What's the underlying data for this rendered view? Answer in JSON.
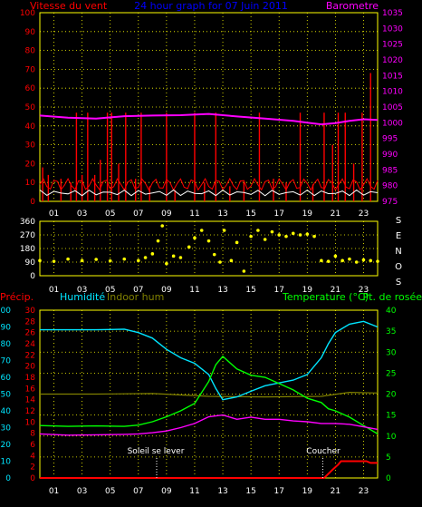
{
  "header": {
    "left": "Vitesse du vent",
    "center": "24 hour graph for  07 Juin 2011",
    "right": "Barometre"
  },
  "x_ticks": [
    "01",
    "03",
    "05",
    "07",
    "09",
    "11",
    "13",
    "15",
    "17",
    "19",
    "21",
    "23"
  ],
  "colors": {
    "grid": "#ffff00",
    "wind": "#ff0000",
    "gust": "#ffffff",
    "pressure": "#ff00ff",
    "direction": "#ffff00",
    "humidity": "#00e5ff",
    "indoor": "#808000",
    "temperature": "#00ff00",
    "dewpoint": "#ff00ff",
    "rain": "#ff0000",
    "sun": "#ffffff",
    "header_left": "#ff0000",
    "header_center": "#0000ff",
    "header_right": "#ff00ff"
  },
  "chart_data": [
    {
      "type": "line",
      "name": "wind",
      "y_left_ticks": [
        "0",
        "10",
        "20",
        "30",
        "40",
        "50",
        "60",
        "70",
        "80",
        "90",
        "100"
      ],
      "y_right_ticks": [
        "975",
        "980",
        "985",
        "990",
        "995",
        "1000",
        "1005",
        "1010",
        "1015",
        "1020",
        "1025",
        "1030",
        "1035"
      ],
      "ylim_left": [
        0,
        100
      ],
      "ylim_right": [
        975,
        1035
      ],
      "xlim": [
        0,
        24
      ],
      "pressure": {
        "x": [
          0,
          2,
          4,
          6,
          8,
          10,
          12,
          14,
          16,
          18,
          19,
          20,
          21,
          22,
          23,
          24
        ],
        "y": [
          1002.3,
          1001.6,
          1001.3,
          1002.1,
          1002.3,
          1002.4,
          1002.8,
          1002.0,
          1001.3,
          1000.6,
          1000.0,
          999.5,
          999.9,
          1000.6,
          1001.1,
          1000.9
        ]
      },
      "wind_spikes": [
        {
          "x": 0.2,
          "v": 18
        },
        {
          "x": 0.6,
          "v": 14
        },
        {
          "x": 1.5,
          "v": 12
        },
        {
          "x": 2.2,
          "v": 10
        },
        {
          "x": 2.6,
          "v": 47
        },
        {
          "x": 3.0,
          "v": 14
        },
        {
          "x": 3.4,
          "v": 47
        },
        {
          "x": 3.9,
          "v": 14
        },
        {
          "x": 4.3,
          "v": 22
        },
        {
          "x": 4.8,
          "v": 47
        },
        {
          "x": 5.1,
          "v": 47
        },
        {
          "x": 5.6,
          "v": 20
        },
        {
          "x": 6.1,
          "v": 47
        },
        {
          "x": 6.8,
          "v": 12
        },
        {
          "x": 7.2,
          "v": 47
        },
        {
          "x": 7.8,
          "v": 8
        },
        {
          "x": 9.0,
          "v": 47
        },
        {
          "x": 9.6,
          "v": 6
        },
        {
          "x": 11.0,
          "v": 47
        },
        {
          "x": 11.7,
          "v": 10
        },
        {
          "x": 12.5,
          "v": 47
        },
        {
          "x": 13.5,
          "v": 8
        },
        {
          "x": 14.5,
          "v": 10
        },
        {
          "x": 15.6,
          "v": 47
        },
        {
          "x": 16.6,
          "v": 12
        },
        {
          "x": 17.5,
          "v": 10
        },
        {
          "x": 18.5,
          "v": 47
        },
        {
          "x": 19.4,
          "v": 9
        },
        {
          "x": 20.2,
          "v": 47
        },
        {
          "x": 20.8,
          "v": 30
        },
        {
          "x": 21.2,
          "v": 47
        },
        {
          "x": 21.7,
          "v": 47
        },
        {
          "x": 22.3,
          "v": 20
        },
        {
          "x": 22.9,
          "v": 47
        },
        {
          "x": 23.5,
          "v": 68
        }
      ],
      "wind_base": 6,
      "gust_base": 3
    },
    {
      "type": "scatter",
      "name": "direction",
      "y_ticks": [
        "0",
        "90",
        "180",
        "270",
        "360"
      ],
      "side_letters": [
        "S",
        "E",
        "N",
        "O",
        "S"
      ],
      "ylim": [
        0,
        360
      ],
      "xlim": [
        0,
        24
      ],
      "points": [
        {
          "x": 0.0,
          "y": 100
        },
        {
          "x": 1.0,
          "y": 95
        },
        {
          "x": 2.0,
          "y": 110
        },
        {
          "x": 3.0,
          "y": 100
        },
        {
          "x": 4.0,
          "y": 108
        },
        {
          "x": 5.0,
          "y": 98
        },
        {
          "x": 6.0,
          "y": 110
        },
        {
          "x": 7.0,
          "y": 100
        },
        {
          "x": 7.5,
          "y": 120
        },
        {
          "x": 8.0,
          "y": 145
        },
        {
          "x": 8.4,
          "y": 230
        },
        {
          "x": 8.7,
          "y": 330
        },
        {
          "x": 9.0,
          "y": 80
        },
        {
          "x": 9.5,
          "y": 130
        },
        {
          "x": 10.0,
          "y": 120
        },
        {
          "x": 10.6,
          "y": 190
        },
        {
          "x": 11.0,
          "y": 250
        },
        {
          "x": 11.5,
          "y": 300
        },
        {
          "x": 12.0,
          "y": 230
        },
        {
          "x": 12.4,
          "y": 140
        },
        {
          "x": 12.8,
          "y": 90
        },
        {
          "x": 13.1,
          "y": 300
        },
        {
          "x": 13.6,
          "y": 100
        },
        {
          "x": 14.0,
          "y": 220
        },
        {
          "x": 14.5,
          "y": 30
        },
        {
          "x": 15.0,
          "y": 260
        },
        {
          "x": 15.5,
          "y": 300
        },
        {
          "x": 16.0,
          "y": 240
        },
        {
          "x": 16.5,
          "y": 290
        },
        {
          "x": 17.0,
          "y": 270
        },
        {
          "x": 17.5,
          "y": 260
        },
        {
          "x": 18.0,
          "y": 280
        },
        {
          "x": 18.5,
          "y": 270
        },
        {
          "x": 19.0,
          "y": 275
        },
        {
          "x": 19.5,
          "y": 260
        },
        {
          "x": 20.0,
          "y": 100
        },
        {
          "x": 20.5,
          "y": 95
        },
        {
          "x": 21.0,
          "y": 130
        },
        {
          "x": 21.5,
          "y": 100
        },
        {
          "x": 22.0,
          "y": 110
        },
        {
          "x": 22.5,
          "y": 90
        },
        {
          "x": 23.0,
          "y": 105
        },
        {
          "x": 23.5,
          "y": 100
        },
        {
          "x": 24.0,
          "y": 95
        }
      ]
    },
    {
      "type": "line",
      "name": "multi",
      "labels": {
        "precip": "Précip.",
        "humidity": "Humidité",
        "indoor": "Indoor hum",
        "temp": "Temperature (°C)",
        "dew": "Pt. de rosée"
      },
      "axis_precip_ticks": [
        "0",
        "10",
        "20",
        "30",
        "40",
        "50",
        "60",
        "70",
        "80",
        "90",
        "100"
      ],
      "axis_hum_ticks": [
        "0",
        "2",
        "4",
        "6",
        "8",
        "10",
        "12",
        "14",
        "16",
        "18",
        "20",
        "22",
        "24",
        "26",
        "28",
        "30"
      ],
      "axis_temp_ticks": [
        "0",
        "5",
        "10",
        "15",
        "20",
        "25",
        "30",
        "35",
        "40"
      ],
      "xlim": [
        0,
        24
      ],
      "ylim_temp": [
        0,
        40
      ],
      "ylim_hum": [
        0,
        30
      ],
      "ylim_precip": [
        0,
        100
      ],
      "humidity": {
        "x": [
          0,
          2,
          4,
          6,
          7,
          8,
          9,
          10,
          11,
          12,
          12.5,
          13,
          14,
          15,
          16,
          17,
          18,
          19,
          20,
          20.5,
          21,
          22,
          23,
          24
        ],
        "y": [
          26.5,
          26.5,
          26.5,
          26.6,
          26.0,
          25.0,
          23.0,
          21.5,
          20.5,
          18.5,
          16.0,
          14.0,
          14.5,
          15.5,
          16.5,
          17.0,
          17.5,
          18.5,
          21.5,
          24.0,
          26.0,
          27.5,
          28.0,
          27.0
        ]
      },
      "indoor": {
        "x": [
          0,
          4,
          8,
          12,
          16,
          20,
          22,
          24
        ],
        "y": [
          15.0,
          15.0,
          15.1,
          14.6,
          14.5,
          14.6,
          15.3,
          15.2
        ]
      },
      "temperature": {
        "x": [
          0,
          2,
          4,
          6,
          7,
          8,
          9,
          10,
          11,
          12,
          12.5,
          13,
          14,
          15,
          16,
          17,
          18,
          19,
          20,
          20.5,
          21,
          22,
          23,
          24
        ],
        "y": [
          12.5,
          12.3,
          12.4,
          12.3,
          12.6,
          13.4,
          14.6,
          16.0,
          17.8,
          23.0,
          27.0,
          29.0,
          26.0,
          24.5,
          24.0,
          22.5,
          21.0,
          19.0,
          18.0,
          16.5,
          16.0,
          14.5,
          12.5,
          10.5
        ]
      },
      "dewpoint": {
        "x": [
          0,
          2,
          4,
          6,
          7,
          8,
          9,
          10,
          11,
          12,
          13,
          14,
          15,
          16,
          17,
          18,
          19,
          20,
          21,
          22,
          23,
          24
        ],
        "y": [
          10.5,
          10.2,
          10.3,
          10.4,
          10.5,
          10.8,
          11.2,
          12.0,
          13.0,
          14.6,
          15.0,
          14.0,
          14.5,
          14.0,
          14.0,
          13.6,
          13.4,
          13.0,
          13.0,
          12.8,
          12.2,
          11.6
        ]
      },
      "rain": {
        "x": [
          0,
          20.2,
          20.8,
          21.2,
          21.4,
          23.2,
          23.5,
          24
        ],
        "y": [
          0,
          0,
          5,
          8,
          10,
          10,
          9,
          9
        ]
      },
      "sun": {
        "sunrise_label": "Soleil se lever",
        "sunset_label": "Coucher",
        "sunrise_x": 8.3,
        "sunset_x": 20.1
      }
    }
  ]
}
